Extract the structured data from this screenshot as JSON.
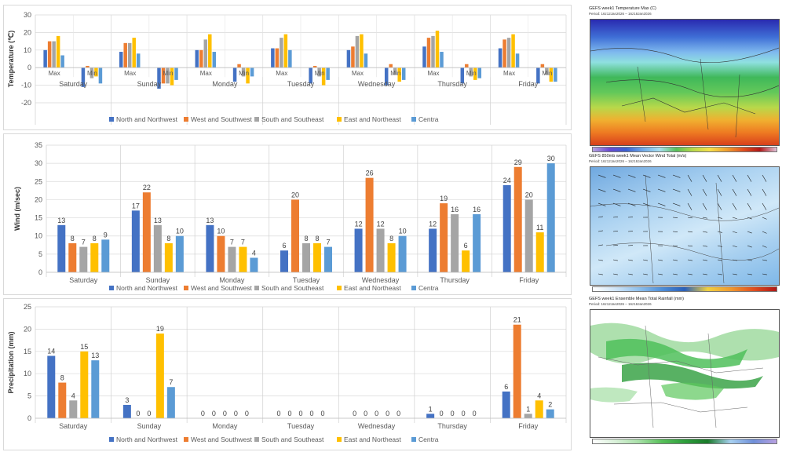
{
  "legend": [
    "North and Northwest",
    "West and Southwest",
    "South and Southeast",
    "East and Northeast",
    "Centra"
  ],
  "colors": [
    "#4472c4",
    "#ed7d31",
    "#a5a5a5",
    "#ffc000",
    "#5b9bd5"
  ],
  "chart_data": [
    {
      "type": "bar",
      "ylabel": "Temperature (℃)",
      "ylim": [
        -20,
        30
      ],
      "yticks": [
        -20,
        -10,
        0,
        10,
        20,
        30
      ],
      "days": [
        "Saturday",
        "Sunday",
        "Monday",
        "Tuesday",
        "Wednesday",
        "Thursday",
        "Friday"
      ],
      "subcategories": [
        "Max",
        "Min"
      ],
      "series": [
        {
          "name": "North and Northwest",
          "max": [
            10,
            9,
            10,
            11,
            10,
            12,
            11
          ],
          "min": [
            -11,
            -12,
            -8,
            -9,
            -10,
            -9,
            -9
          ]
        },
        {
          "name": "West and Southwest",
          "max": [
            15,
            14,
            10,
            11,
            12,
            17,
            16
          ],
          "min": [
            1,
            -9,
            2,
            1,
            2,
            2,
            2
          ]
        },
        {
          "name": "South and Southeast",
          "max": [
            15,
            14,
            16,
            17,
            18,
            18,
            17
          ],
          "min": [
            -6,
            -9,
            -5,
            -5,
            -4,
            -5,
            -4
          ]
        },
        {
          "name": "East and Northeast",
          "max": [
            18,
            17,
            19,
            19,
            19,
            21,
            19
          ],
          "min": [
            -5,
            -10,
            -9,
            -10,
            -8,
            -7,
            -8
          ]
        },
        {
          "name": "Centra",
          "max": [
            7,
            8,
            9,
            10,
            8,
            9,
            8
          ],
          "min": [
            -9,
            -7,
            -5,
            -7,
            -7,
            -6,
            -8
          ]
        }
      ],
      "grid": true,
      "legend": "bottom"
    },
    {
      "type": "bar",
      "ylabel": "Wind (m/sec)",
      "ylim": [
        0,
        35
      ],
      "yticks": [
        0,
        5,
        10,
        15,
        20,
        25,
        30,
        35
      ],
      "categories": [
        "Saturday",
        "Sunday",
        "Monday",
        "Tuesday",
        "Wednesday",
        "Thursday",
        "Friday"
      ],
      "series": [
        {
          "name": "North and Northwest",
          "values": [
            13,
            17,
            13,
            6,
            12,
            12,
            24
          ]
        },
        {
          "name": "West and Southwest",
          "values": [
            8,
            22,
            10,
            20,
            26,
            19,
            29
          ]
        },
        {
          "name": "South and Southeast",
          "values": [
            7,
            13,
            7,
            8,
            12,
            16,
            20
          ]
        },
        {
          "name": "East and Northeast",
          "values": [
            8,
            8,
            7,
            8,
            8,
            6,
            11
          ]
        },
        {
          "name": "Centra",
          "values": [
            9,
            10,
            4,
            7,
            10,
            16,
            30
          ]
        }
      ],
      "grid": true,
      "legend": "bottom"
    },
    {
      "type": "bar",
      "ylabel": "Precipitation (mm)",
      "ylim": [
        0,
        25
      ],
      "yticks": [
        0,
        5,
        10,
        15,
        20,
        25
      ],
      "categories": [
        "Saturday",
        "Sunday",
        "Monday",
        "Tuesday",
        "Wednesday",
        "Thursday",
        "Friday"
      ],
      "series": [
        {
          "name": "North and Northwest",
          "values": [
            14,
            3,
            0,
            0,
            0,
            1,
            6
          ]
        },
        {
          "name": "West and Southwest",
          "values": [
            8,
            0,
            0,
            0,
            0,
            0,
            21
          ]
        },
        {
          "name": "South and Southeast",
          "values": [
            4,
            0,
            0,
            0,
            0,
            0,
            1
          ]
        },
        {
          "name": "East and Northeast",
          "values": [
            15,
            19,
            0,
            0,
            0,
            0,
            4
          ]
        },
        {
          "name": "Centra",
          "values": [
            13,
            7,
            0,
            0,
            0,
            0,
            2
          ]
        }
      ],
      "grid": true,
      "legend": "bottom"
    }
  ],
  "maps": {
    "temp": {
      "title": "GEFS week1 Temperature Max (C)",
      "period": "Period: 16z12Jan2026 – 16z18Jan2026"
    },
    "wind": {
      "title": "GEFS 850mb week1 Mean Vector Wind Total (m/s)",
      "period": "Period: 16z12Jan2026 – 16z18Jan2026"
    },
    "rain": {
      "title": "GEFS week1 Ensemble Mean Total Rainfall (mm)",
      "period": "Period: 16z12Jan2026 – 16z18Jan2026"
    }
  }
}
